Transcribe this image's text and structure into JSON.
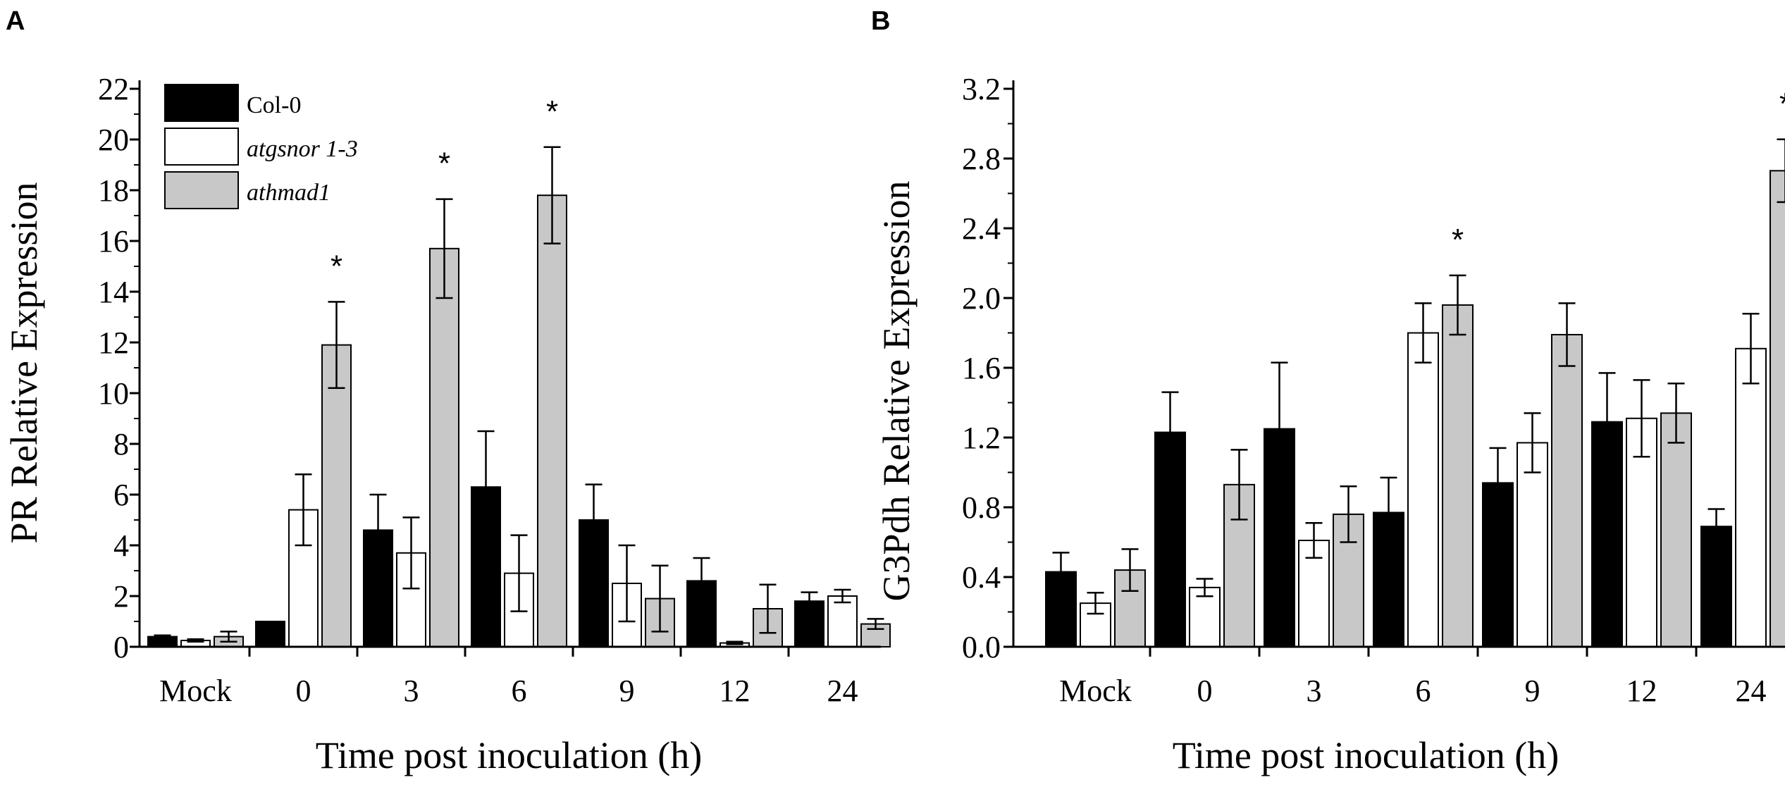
{
  "panels": {
    "A": {
      "letter": "A"
    },
    "B": {
      "letter": "B"
    }
  },
  "chart_data": [
    {
      "panel": "A",
      "type": "bar",
      "title": "",
      "xlabel": "Time post inoculation (h)",
      "ylabel": "PR Relative Expression",
      "categories": [
        "Mock",
        "0",
        "3",
        "6",
        "9",
        "12",
        "24"
      ],
      "ylim": [
        0,
        22
      ],
      "yticks": [
        0,
        2,
        4,
        6,
        8,
        10,
        12,
        14,
        16,
        18,
        20,
        22
      ],
      "ytick_labels": [
        "0",
        "2",
        "4",
        "6",
        "8",
        "10",
        "12",
        "14",
        "16",
        "18",
        "20",
        "22"
      ],
      "series": [
        {
          "name": "Col-0",
          "color": "#000000",
          "values": [
            0.4,
            1.0,
            4.6,
            6.3,
            5.0,
            2.6,
            1.8
          ],
          "errors": [
            0.05,
            0.0,
            1.4,
            2.2,
            1.4,
            0.9,
            0.35
          ]
        },
        {
          "name": "atgsnor 1-3",
          "color": "#ffffff",
          "values": [
            0.25,
            5.4,
            3.7,
            2.9,
            2.5,
            0.15,
            2.0
          ],
          "errors": [
            0.05,
            1.4,
            1.4,
            1.5,
            1.5,
            0.05,
            0.25
          ]
        },
        {
          "name": "athmad1",
          "color": "#c8c8c8",
          "values": [
            0.4,
            11.9,
            15.7,
            17.8,
            1.9,
            1.5,
            0.9
          ],
          "errors": [
            0.2,
            1.7,
            1.95,
            1.9,
            1.3,
            0.95,
            0.2
          ]
        }
      ],
      "significance": [
        {
          "category": "0",
          "series": "athmad1",
          "label": "*"
        },
        {
          "category": "3",
          "series": "athmad1",
          "label": "*"
        },
        {
          "category": "6",
          "series": "athmad1",
          "label": "*"
        }
      ],
      "legend": {
        "placement": "top-left",
        "entries": [
          "Col-0",
          "atgsnor 1-3",
          "athmad1"
        ]
      }
    },
    {
      "panel": "B",
      "type": "bar",
      "title": "",
      "xlabel": "Time post inoculation (h)",
      "ylabel": "G3Pdh Relative Expression",
      "categories": [
        "Mock",
        "0",
        "3",
        "6",
        "9",
        "12",
        "24"
      ],
      "ylim": [
        0,
        3.2
      ],
      "yticks": [
        0,
        0.4,
        0.8,
        1.2,
        1.6,
        2.0,
        2.4,
        2.8,
        3.2
      ],
      "ytick_labels": [
        "0.0",
        "0.4",
        "0.8",
        "1.2",
        "1.6",
        "2.0",
        "2.4",
        "2.8",
        "3.2"
      ],
      "series": [
        {
          "name": "Col-0",
          "color": "#000000",
          "values": [
            0.43,
            1.23,
            1.25,
            0.77,
            0.94,
            1.29,
            0.69
          ],
          "errors": [
            0.11,
            0.23,
            0.38,
            0.2,
            0.2,
            0.28,
            0.1
          ]
        },
        {
          "name": "atgsnor 1-3",
          "color": "#ffffff",
          "values": [
            0.25,
            0.34,
            0.61,
            1.8,
            1.17,
            1.31,
            1.71
          ],
          "errors": [
            0.06,
            0.05,
            0.1,
            0.17,
            0.17,
            0.22,
            0.2
          ]
        },
        {
          "name": "athmad1",
          "color": "#c8c8c8",
          "values": [
            0.44,
            0.93,
            0.76,
            1.96,
            1.79,
            1.34,
            2.73
          ],
          "errors": [
            0.12,
            0.2,
            0.16,
            0.17,
            0.18,
            0.17,
            0.18
          ]
        }
      ],
      "significance": [
        {
          "category": "6",
          "series": "athmad1",
          "label": "*"
        },
        {
          "category": "24",
          "series": "athmad1",
          "label": "*"
        }
      ]
    }
  ]
}
